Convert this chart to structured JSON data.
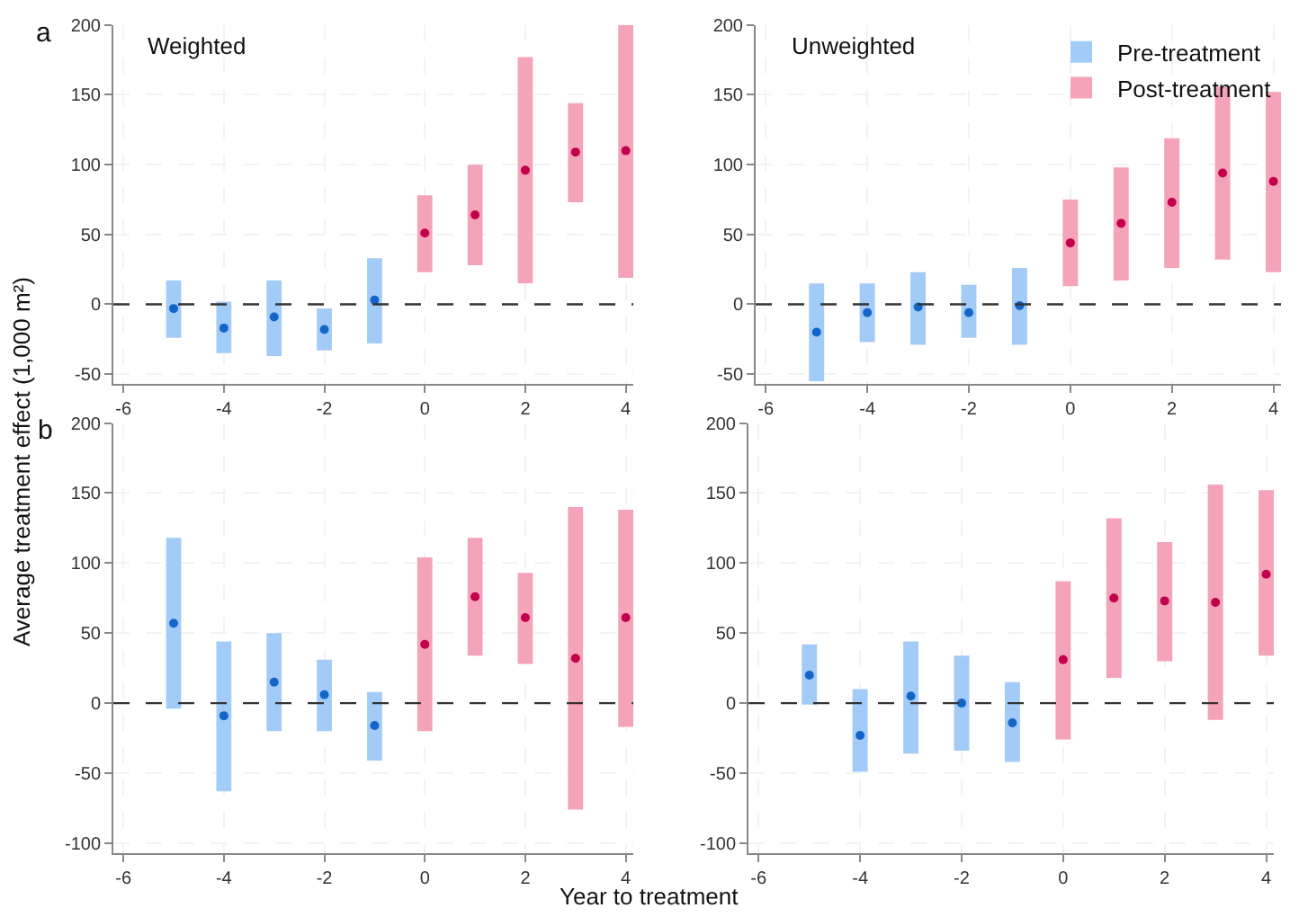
{
  "chart_data": [
    {
      "type": "bar",
      "title": "Weighted",
      "annotations": [
        "a"
      ],
      "ylabel": "Average treatment effect (1,000 m²)",
      "xlim": [
        -6.2,
        4.15
      ],
      "xticks": [
        -6,
        -4,
        -2,
        0,
        2,
        4
      ],
      "ylim": [
        -57,
        200
      ],
      "yticks": [
        -50,
        0,
        50,
        100,
        150,
        200
      ],
      "grid": true,
      "ref_lines": [
        {
          "axis": "y",
          "value": 0,
          "color": "#333333",
          "line_style": "dashed"
        }
      ],
      "series": [
        {
          "color": "#a3cbf7",
          "x": [
            -5,
            -4,
            -3,
            -2,
            -1
          ],
          "base": [
            -24,
            -35,
            -37,
            -33,
            -28
          ],
          "values": [
            41,
            37,
            54,
            30,
            61
          ]
        },
        {
          "color": "#f4a3b9",
          "x": [
            0,
            1,
            2,
            3,
            4
          ],
          "base": [
            23,
            28,
            15,
            73,
            19
          ],
          "values": [
            55,
            72,
            162,
            71,
            181
          ]
        },
        {
          "type": "scatter",
          "color": "#1565c8",
          "marker": "circle",
          "x": [
            -5,
            -4,
            -3,
            -2,
            -1
          ],
          "values": [
            -3,
            -17,
            -9,
            -18,
            3
          ]
        },
        {
          "type": "scatter",
          "color": "#c2004b",
          "marker": "circle",
          "x": [
            0,
            1,
            2,
            3,
            4
          ],
          "values": [
            51,
            64,
            96,
            109,
            110
          ]
        }
      ]
    },
    {
      "type": "bar",
      "title": "Unweighted",
      "legend": "top right",
      "xlim": [
        -6.2,
        4.15
      ],
      "xticks": [
        -6,
        -4,
        -2,
        0,
        2,
        4
      ],
      "ylim": [
        -57,
        200
      ],
      "yticks": [
        -50,
        0,
        50,
        100,
        150,
        200
      ],
      "grid": true,
      "ref_lines": [
        {
          "axis": "y",
          "value": 0,
          "color": "#333333",
          "line_style": "dashed"
        }
      ],
      "series": [
        {
          "name": "Pre-treatment",
          "color": "#a3cbf7",
          "x": [
            -5,
            -4,
            -3,
            -2,
            -1
          ],
          "base": [
            -55,
            -27,
            -29,
            -24,
            -29
          ],
          "values": [
            70,
            42,
            52,
            38,
            55
          ]
        },
        {
          "name": "Post-treatment",
          "color": "#f4a3b9",
          "x": [
            0,
            1,
            2,
            3,
            4
          ],
          "base": [
            13,
            17,
            26,
            32,
            23
          ],
          "values": [
            62,
            81,
            93,
            124,
            129
          ]
        },
        {
          "type": "scatter",
          "color": "#1565c8",
          "marker": "circle",
          "x": [
            -5,
            -4,
            -3,
            -2,
            -1
          ],
          "values": [
            -20,
            -6,
            -2,
            -6,
            -1
          ]
        },
        {
          "type": "scatter",
          "color": "#c2004b",
          "marker": "circle",
          "x": [
            0,
            1,
            2,
            3,
            4
          ],
          "values": [
            44,
            58,
            73,
            94,
            88
          ]
        }
      ]
    },
    {
      "type": "bar",
      "annotations": [
        "b"
      ],
      "xlabel": "Year to treatment",
      "xlim": [
        -6.2,
        4.15
      ],
      "xticks": [
        -6,
        -4,
        -2,
        0,
        2,
        4
      ],
      "ylim": [
        -107,
        200
      ],
      "yticks": [
        -100,
        -50,
        0,
        50,
        100,
        150,
        200
      ],
      "grid": true,
      "ref_lines": [
        {
          "axis": "y",
          "value": 0,
          "color": "#333333",
          "line_style": "dashed"
        }
      ],
      "series": [
        {
          "color": "#a3cbf7",
          "x": [
            -5,
            -4,
            -3,
            -2,
            -1
          ],
          "base": [
            -4,
            -63,
            -20,
            -20,
            -41
          ],
          "values": [
            122,
            107,
            70,
            51,
            49
          ]
        },
        {
          "color": "#f4a3b9",
          "x": [
            0,
            1,
            2,
            3,
            4
          ],
          "base": [
            -20,
            34,
            28,
            -76,
            -17
          ],
          "values": [
            124,
            84,
            65,
            216,
            155
          ]
        },
        {
          "type": "scatter",
          "color": "#1565c8",
          "marker": "circle",
          "x": [
            -5,
            -4,
            -3,
            -2,
            -1
          ],
          "values": [
            57,
            -9,
            15,
            6,
            -16
          ]
        },
        {
          "type": "scatter",
          "color": "#c2004b",
          "marker": "circle",
          "x": [
            0,
            1,
            2,
            3,
            4
          ],
          "values": [
            42,
            76,
            61,
            32,
            61
          ]
        }
      ]
    },
    {
      "type": "bar",
      "xlim": [
        -6.2,
        4.15
      ],
      "xticks": [
        -6,
        -4,
        -2,
        0,
        2,
        4
      ],
      "ylim": [
        -107,
        200
      ],
      "yticks": [
        -100,
        -50,
        0,
        50,
        100,
        150,
        200
      ],
      "grid": true,
      "ref_lines": [
        {
          "axis": "y",
          "value": 0,
          "color": "#333333",
          "line_style": "dashed"
        }
      ],
      "series": [
        {
          "color": "#a3cbf7",
          "x": [
            -5,
            -4,
            -3,
            -2,
            -1
          ],
          "base": [
            -1,
            -49,
            -36,
            -34,
            -42
          ],
          "values": [
            43,
            59,
            80,
            68,
            57
          ]
        },
        {
          "color": "#f4a3b9",
          "x": [
            0,
            1,
            2,
            3,
            4
          ],
          "base": [
            -26,
            18,
            30,
            -12,
            34
          ],
          "values": [
            113,
            114,
            85,
            168,
            118
          ]
        },
        {
          "type": "scatter",
          "color": "#1565c8",
          "marker": "circle",
          "x": [
            -5,
            -4,
            -3,
            -2,
            -1
          ],
          "values": [
            20,
            -23,
            5,
            0,
            -14
          ]
        },
        {
          "type": "scatter",
          "color": "#c2004b",
          "marker": "circle",
          "x": [
            0,
            1,
            2,
            3,
            4
          ],
          "values": [
            31,
            75,
            73,
            72,
            92
          ]
        }
      ]
    }
  ]
}
